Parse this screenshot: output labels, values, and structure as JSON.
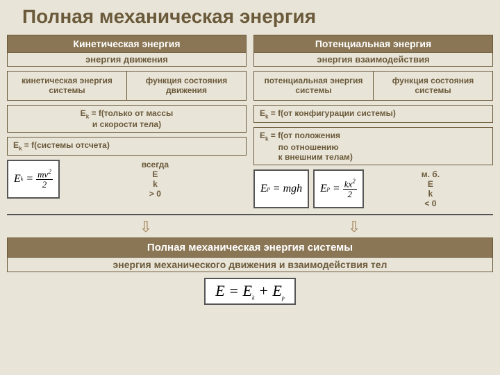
{
  "title": "Полная механическая энергия",
  "left": {
    "header": "Кинетическая энергия",
    "sub": "энергия движения",
    "cell1": "кинетическая энергия системы",
    "cell2": "функция состояния движения",
    "f1": "E<sub>k</sub> = f(только от массы и скорости тела)",
    "f2": "E<sub>k</sub> = f(системы отсчета)",
    "note": "всегда E<sub>k</sub> > 0"
  },
  "right": {
    "header": "Потенциальная энергия",
    "sub": "энергия взаимодействия",
    "cell1": "потенциальная энергия системы",
    "cell2": "функция состояния системы",
    "f1": "E<sub>k</sub> = f(от конфигурации системы)",
    "f2": "E<sub>k</sub> = f(от положения по отношению к внешним телам)",
    "note": "м. б. E<sub>k</sub> < 0"
  },
  "bottom": {
    "bar": "Полная механическая энергия системы",
    "sub": "энергия механического движения и взаимодействия тел"
  },
  "colors": {
    "bg": "#e8e4d8",
    "dark": "#8a7654",
    "text": "#6b5a3a"
  }
}
